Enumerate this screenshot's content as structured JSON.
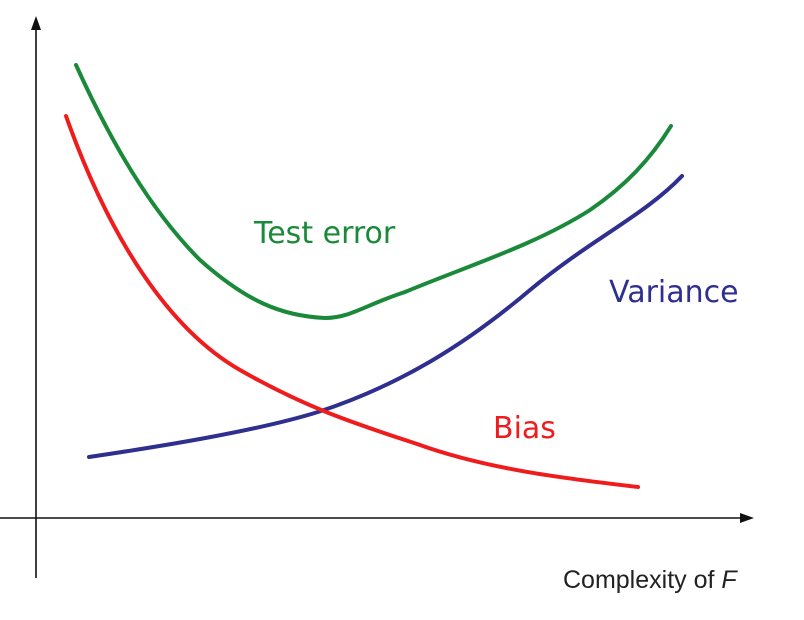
{
  "diagram": {
    "x_axis_label": "Complexity of ",
    "x_axis_variable": "F",
    "curves": {
      "test_error": {
        "label": "Test error",
        "color": "#1a8a3a"
      },
      "variance": {
        "label": "Variance",
        "color": "#2f2f8f"
      },
      "bias": {
        "label": "Bias",
        "color": "#ee1c1c"
      }
    }
  }
}
